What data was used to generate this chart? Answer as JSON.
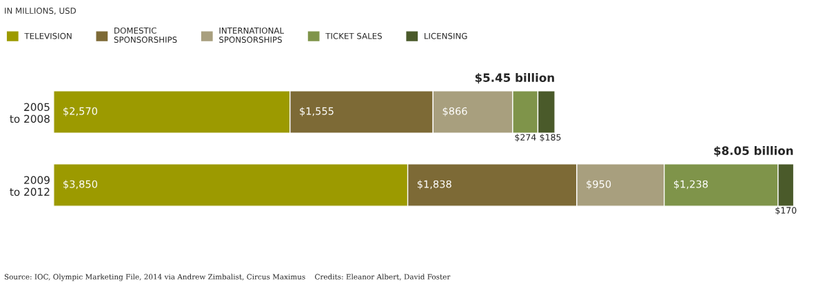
{
  "chart_data": {
    "type": "bar",
    "orientation": "horizontal",
    "stacked": true,
    "subtitle": "IN MILLIONS, USD",
    "categories": [
      "2005\nto 2008",
      "2009\nto 2012"
    ],
    "series": [
      {
        "name": "TELEVISION",
        "color": "#9c9a00",
        "values": [
          2570,
          3850
        ],
        "value_labels": [
          "$2,570",
          "$3,850"
        ]
      },
      {
        "name": "DOMESTIC\nSPONSORSHIPS",
        "color": "#7d6a36",
        "values": [
          1555,
          1838
        ],
        "value_labels": [
          "$1,555",
          "$1,838"
        ]
      },
      {
        "name": "INTERNATIONAL\nSPONSORSHIPS",
        "color": "#a89f7e",
        "values": [
          866,
          950
        ],
        "value_labels": [
          "$866",
          "$950"
        ]
      },
      {
        "name": "TICKET SALES",
        "color": "#7f944a",
        "values": [
          274,
          1238
        ],
        "value_labels": [
          "$274",
          "$1,238"
        ]
      },
      {
        "name": "LICENSING",
        "color": "#4a5a2a",
        "values": [
          185,
          170
        ],
        "value_labels": [
          "$185",
          "$170"
        ]
      }
    ],
    "totals": [
      "$5.45 billion",
      "$8.05 billion"
    ],
    "legend": "top left",
    "annotations": [
      "Source: IOC, Olympic Marketing File, 2014 via Andrew Zimbalist, Circus Maximus    Credits: Eleanor Albert, David Foster"
    ]
  }
}
